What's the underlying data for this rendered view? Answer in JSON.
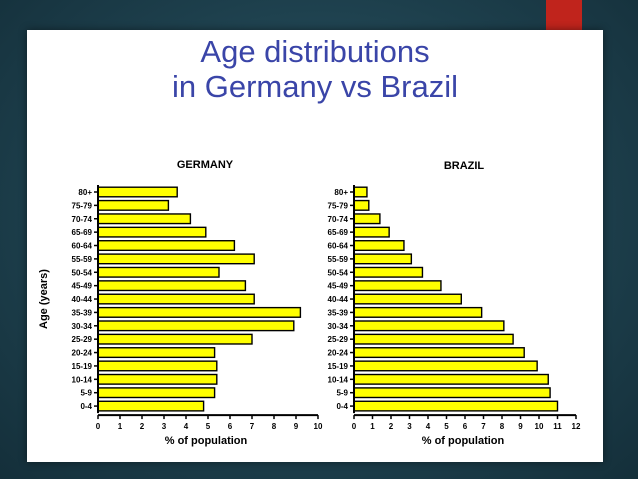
{
  "slide": {
    "title_line1": "Age distributions",
    "title_line2": "in Germany vs Brazil",
    "accent_color": "#c0241c",
    "title_color": "#3a45a8"
  },
  "chart_data": [
    {
      "type": "bar",
      "orientation": "horizontal",
      "title": "GERMANY",
      "xlabel": "% of population",
      "ylabel": "Age (years)",
      "xlim": [
        0,
        10
      ],
      "xticks": [
        0,
        1,
        2,
        3,
        4,
        5,
        6,
        7,
        8,
        9,
        10
      ],
      "bar_color": "#ffff00",
      "grid": false,
      "categories": [
        "80+",
        "75-79",
        "70-74",
        "65-69",
        "60-64",
        "55-59",
        "50-54",
        "45-49",
        "40-44",
        "35-39",
        "30-34",
        "25-29",
        "20-24",
        "15-19",
        "10-14",
        "5-9",
        "0-4"
      ],
      "values": [
        3.6,
        3.2,
        4.2,
        4.9,
        6.2,
        7.1,
        5.5,
        6.7,
        7.1,
        9.2,
        8.9,
        7.0,
        5.3,
        5.4,
        5.4,
        5.3,
        4.8
      ]
    },
    {
      "type": "bar",
      "orientation": "horizontal",
      "title": "BRAZIL",
      "xlabel": "% of population",
      "ylabel": "",
      "xlim": [
        0,
        12
      ],
      "xticks": [
        0,
        1,
        2,
        3,
        4,
        5,
        6,
        7,
        8,
        9,
        10,
        11,
        12
      ],
      "bar_color": "#ffff00",
      "grid": false,
      "categories": [
        "80+",
        "75-79",
        "70-74",
        "65-69",
        "60-64",
        "55-59",
        "50-54",
        "45-49",
        "40-44",
        "35-39",
        "30-34",
        "25-29",
        "20-24",
        "15-19",
        "10-14",
        "5-9",
        "0-4"
      ],
      "values": [
        0.7,
        0.8,
        1.4,
        1.9,
        2.7,
        3.1,
        3.7,
        4.7,
        5.8,
        6.9,
        8.1,
        8.6,
        9.2,
        9.9,
        10.5,
        10.6,
        11.0
      ]
    }
  ]
}
